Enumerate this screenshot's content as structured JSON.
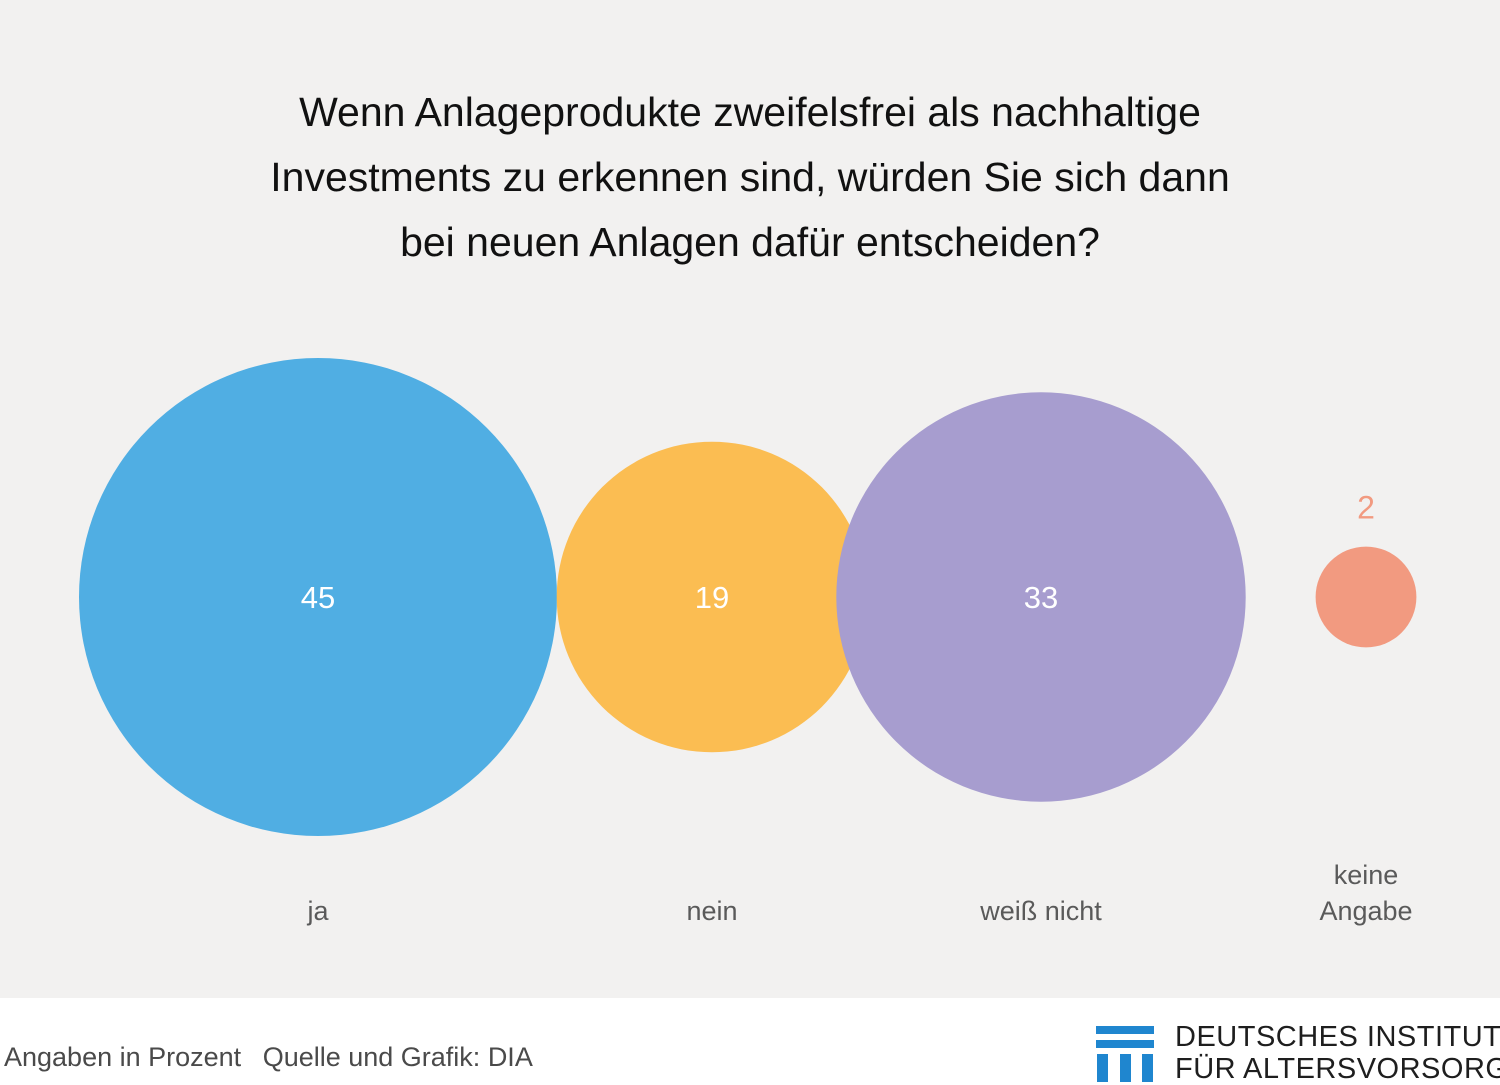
{
  "title_lines": [
    "Wenn Anlageprodukte zweifelsfrei als nachhaltige",
    "Investments zu erkennen sind, würden Sie sich dann",
    "bei neuen Anlagen dafür entscheiden?"
  ],
  "chart_data": {
    "type": "bubble",
    "title": "Wenn Anlageprodukte zweifelsfrei als nachhaltige Investments zu erkennen sind, würden Sie sich dann bei neuen Anlagen dafür entscheiden?",
    "unit": "Prozent",
    "items": [
      {
        "category": [
          "ja"
        ],
        "value": 45,
        "color": "#50aee3",
        "value_label_position": "inside",
        "value_color": "#ffffff"
      },
      {
        "category": [
          "nein"
        ],
        "value": 19,
        "color": "#fbbd52",
        "value_label_position": "inside",
        "value_color": "#ffffff"
      },
      {
        "category": [
          "weiß nicht"
        ],
        "value": 33,
        "color": "#a79dcf",
        "value_label_position": "inside",
        "value_color": "#ffffff"
      },
      {
        "category": [
          "keine",
          "Angabe"
        ],
        "value": 2,
        "color": "#f29a80",
        "value_label_position": "above",
        "value_color": "#f29a80"
      }
    ],
    "category_label_color": "#5a5a5a"
  },
  "footer": {
    "unit_note": "Angaben in Prozent",
    "source": "Quelle und Grafik: DIA"
  },
  "logo": {
    "line1": "DEUTSCHES INSTITUT",
    "line2": "FÜR ALTERSVORSORGE",
    "color": "#1f86cf"
  }
}
